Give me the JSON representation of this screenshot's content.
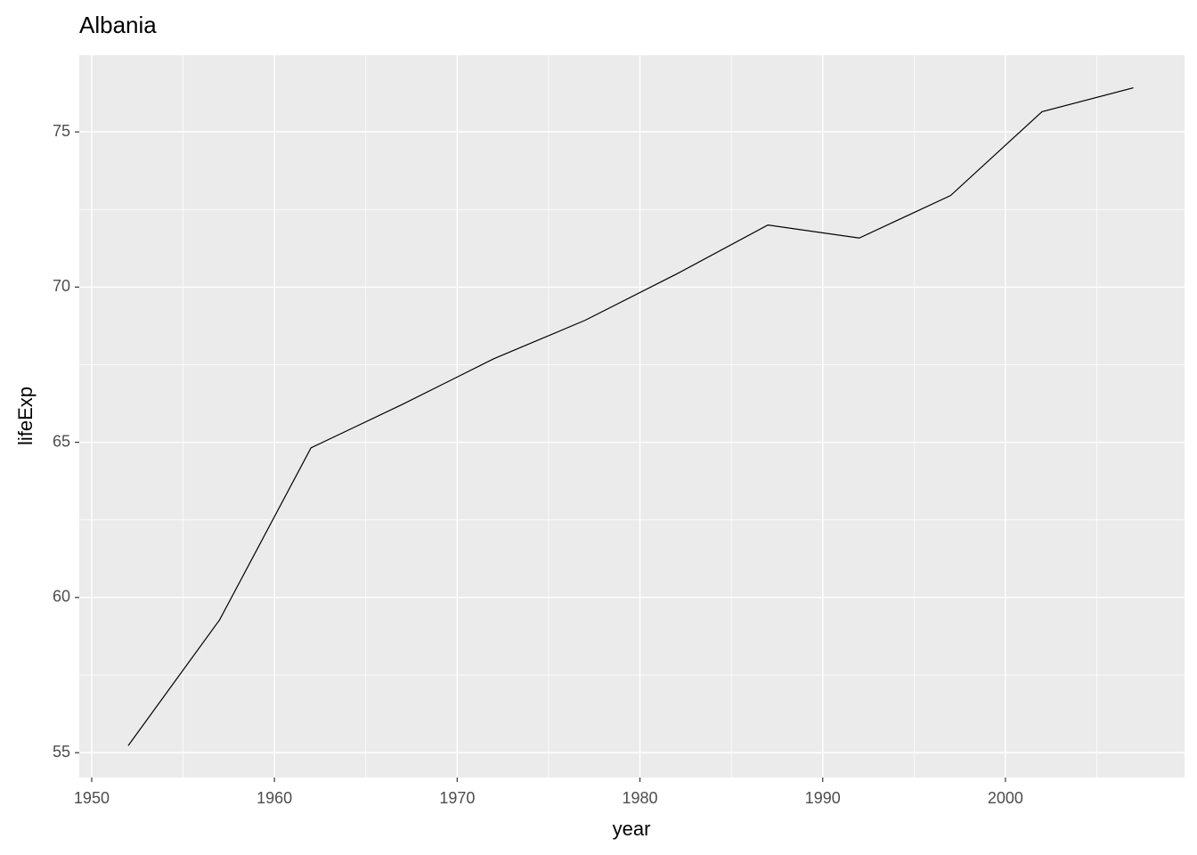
{
  "chart_data": {
    "type": "line",
    "title": "Albania",
    "x_label": "year",
    "y_label": "lifeExp",
    "x": [
      1952,
      1957,
      1962,
      1967,
      1972,
      1977,
      1982,
      1987,
      1992,
      1997,
      2002,
      2007
    ],
    "series": [
      {
        "color": "#000000",
        "values": [
          55.23,
          59.28,
          64.82,
          66.22,
          67.69,
          68.93,
          70.42,
          72.0,
          71.58,
          72.95,
          75.65,
          76.42
        ]
      }
    ],
    "xlim": [
      1949.32,
      2009.8
    ],
    "xticks": [
      1950,
      1960,
      1970,
      1980,
      1990,
      2000
    ],
    "ylim": [
      54.2,
      77.47
    ],
    "yticks": [
      55,
      60,
      65,
      70,
      75
    ],
    "grid": true,
    "minor_grid": true
  }
}
